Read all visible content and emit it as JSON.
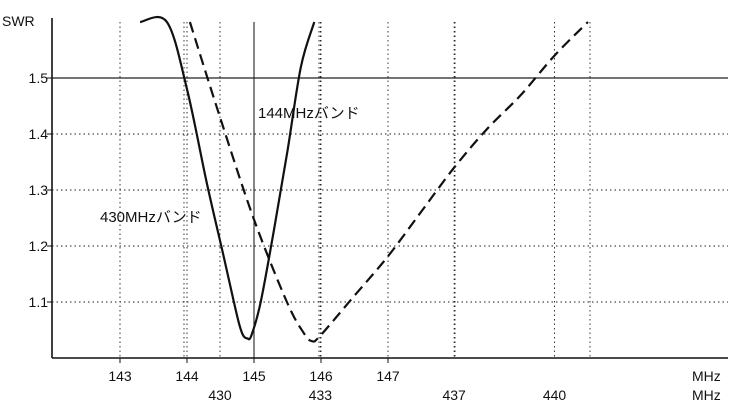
{
  "chart_data": {
    "type": "line",
    "ylabel": "SWR",
    "ylim": [
      1.0,
      1.6
    ],
    "yticks": [
      "1.1",
      "1.2",
      "1.3",
      "1.4",
      "1.5"
    ],
    "reference_line_y": 1.5,
    "grid": "dotted",
    "x_axes": [
      {
        "unit": "MHz",
        "ticks": [
          "143",
          "144",
          "145",
          "146",
          "147"
        ],
        "range": [
          142.0,
          148.0
        ]
      },
      {
        "unit": "MHz",
        "ticks": [
          "430",
          "433",
          "437",
          "440"
        ],
        "range": [
          428.0,
          443.0
        ]
      }
    ],
    "series": [
      {
        "name": "144MHzバンド",
        "axis": 0,
        "style": "solid",
        "x": [
          143.3,
          143.7,
          144.0,
          144.3,
          144.55,
          144.7,
          144.78,
          144.84,
          144.9,
          144.96,
          145.1,
          145.3,
          145.5,
          145.7,
          145.9
        ],
        "y": [
          1.6,
          1.6,
          1.48,
          1.31,
          1.18,
          1.1,
          1.06,
          1.04,
          1.035,
          1.04,
          1.1,
          1.23,
          1.37,
          1.52,
          1.6
        ]
      },
      {
        "name": "430MHzバンド",
        "axis": 1,
        "style": "dashed",
        "x": [
          429.1,
          430.0,
          431.0,
          432.0,
          432.5,
          432.75,
          433.0,
          434.0,
          435.0,
          436.0,
          437.0,
          438.0,
          439.0,
          440.0,
          441.0
        ],
        "y": [
          1.6,
          1.43,
          1.25,
          1.1,
          1.045,
          1.03,
          1.04,
          1.11,
          1.18,
          1.26,
          1.34,
          1.41,
          1.47,
          1.54,
          1.6
        ]
      }
    ],
    "annotations": [
      {
        "text": "144MHzバンド",
        "anchor": "upper-center"
      },
      {
        "text": "430MHzバンド",
        "anchor": "left-middle"
      }
    ]
  }
}
